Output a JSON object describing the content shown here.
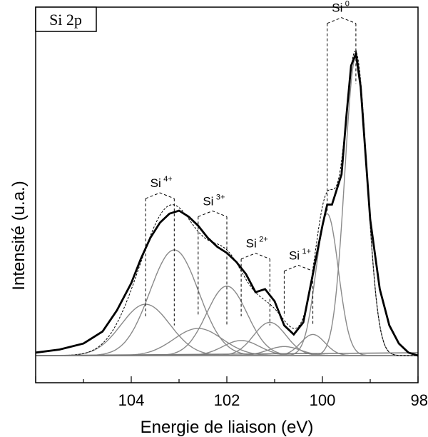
{
  "chart_data": {
    "type": "line",
    "title": "",
    "panel_label": "Si 2p",
    "xlabel": "Energie de liaison (eV)",
    "ylabel": "Intensité (u.a.)",
    "xlim": [
      106,
      98
    ],
    "x_reversed": true,
    "ylim": [
      0,
      1
    ],
    "x_ticks": [
      104,
      102,
      100,
      98
    ],
    "y_ticks": [],
    "grid": false,
    "legend": "none",
    "series": [
      {
        "kind": "measured",
        "x": [
          106.0,
          105.5,
          105.0,
          104.6,
          104.3,
          104.0,
          103.8,
          103.6,
          103.4,
          103.2,
          103.0,
          102.8,
          102.6,
          102.4,
          102.2,
          102.0,
          101.8,
          101.6,
          101.4,
          101.2,
          101.0,
          100.8,
          100.6,
          100.4,
          100.2,
          100.0,
          99.9,
          99.8,
          99.6,
          99.5,
          99.4,
          99.3,
          99.2,
          99.0,
          98.8,
          98.6,
          98.4,
          98.2,
          98.0
        ],
        "y": [
          0.01,
          0.02,
          0.04,
          0.08,
          0.15,
          0.24,
          0.32,
          0.39,
          0.44,
          0.47,
          0.48,
          0.46,
          0.43,
          0.39,
          0.36,
          0.34,
          0.31,
          0.27,
          0.21,
          0.22,
          0.18,
          0.1,
          0.07,
          0.11,
          0.27,
          0.43,
          0.5,
          0.5,
          0.6,
          0.79,
          0.96,
          1.0,
          0.89,
          0.45,
          0.22,
          0.1,
          0.04,
          0.01,
          0.0
        ]
      },
      {
        "kind": "component",
        "center": 103.7,
        "amplitude": 0.17,
        "fwhm": 1.2
      },
      {
        "kind": "component",
        "center": 103.1,
        "amplitude": 0.35,
        "fwhm": 1.2
      },
      {
        "kind": "component",
        "center": 102.6,
        "amplitude": 0.09,
        "fwhm": 1.2
      },
      {
        "kind": "component",
        "center": 102.0,
        "amplitude": 0.23,
        "fwhm": 1.0
      },
      {
        "kind": "component",
        "center": 101.7,
        "amplitude": 0.05,
        "fwhm": 0.9
      },
      {
        "kind": "component",
        "center": 101.1,
        "amplitude": 0.11,
        "fwhm": 0.8
      },
      {
        "kind": "component",
        "center": 100.8,
        "amplitude": 0.03,
        "fwhm": 0.8
      },
      {
        "kind": "component",
        "center": 100.2,
        "amplitude": 0.07,
        "fwhm": 0.6
      },
      {
        "kind": "component",
        "center": 99.9,
        "amplitude": 0.47,
        "fwhm": 0.55
      },
      {
        "kind": "component",
        "center": 99.3,
        "amplitude": 0.99,
        "fwhm": 0.55
      }
    ],
    "annotations": [
      {
        "base": "Si",
        "sup": "4+",
        "x_range": [
          103.7,
          103.1
        ]
      },
      {
        "base": "Si",
        "sup": "3+",
        "x_range": [
          102.6,
          102.0
        ]
      },
      {
        "base": "Si",
        "sup": "2+",
        "x_range": [
          101.7,
          101.1
        ]
      },
      {
        "base": "Si",
        "sup": "1+",
        "x_range": [
          100.8,
          100.2
        ]
      },
      {
        "base": "Si",
        "sup": "0",
        "x_range": [
          99.9,
          99.3
        ]
      }
    ]
  }
}
